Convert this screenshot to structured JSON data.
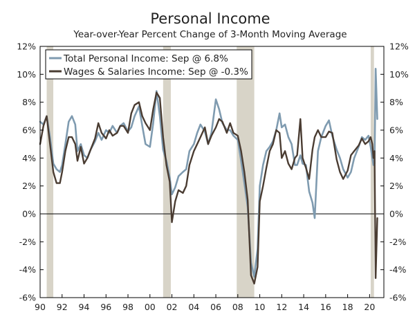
{
  "chart_data": {
    "type": "line",
    "title": "Personal Income",
    "subtitle": "Year-over-Year Percent Change of 3-Month Moving Average",
    "xlabel": "",
    "ylabel": "",
    "xlim": [
      1990,
      2021.3
    ],
    "ylim": [
      -6,
      12
    ],
    "y_ticks": [
      12,
      10,
      8,
      6,
      4,
      2,
      0,
      -2,
      -4,
      -6
    ],
    "y_tick_labels": [
      "12%",
      "10%",
      "8%",
      "6%",
      "4%",
      "2%",
      "0%",
      "-2%",
      "-4%",
      "-6%"
    ],
    "x_ticks": [
      1990,
      1992,
      1994,
      1996,
      1998,
      2000,
      2002,
      2004,
      2006,
      2008,
      2010,
      2012,
      2014,
      2016,
      2018,
      2020
    ],
    "x_tick_labels": [
      "90",
      "92",
      "94",
      "96",
      "98",
      "00",
      "02",
      "04",
      "06",
      "08",
      "10",
      "12",
      "14",
      "16",
      "18",
      "20"
    ],
    "legend_position": "top-left",
    "recessions": [
      [
        1990.6,
        1991.2
      ],
      [
        2001.2,
        2001.9
      ],
      [
        2007.9,
        2009.5
      ],
      [
        2020.1,
        2020.4
      ]
    ],
    "series": [
      {
        "name": "Total Personal Income: Sep @ 6.8%",
        "color": "#7f9bb0",
        "x": [
          1990.0,
          1990.3,
          1990.6,
          1990.9,
          1991.2,
          1991.5,
          1991.8,
          1992.0,
          1992.3,
          1992.6,
          1992.9,
          1993.2,
          1993.4,
          1993.7,
          1994.0,
          1994.3,
          1994.6,
          1995.0,
          1995.3,
          1995.6,
          1996.0,
          1996.3,
          1996.6,
          1997.0,
          1997.3,
          1997.6,
          1998.0,
          1998.3,
          1998.6,
          1999.0,
          1999.3,
          1999.6,
          2000.0,
          2000.3,
          2000.6,
          2000.9,
          2001.2,
          2001.5,
          2001.8,
          2002.0,
          2002.3,
          2002.6,
          2003.0,
          2003.3,
          2003.6,
          2004.0,
          2004.3,
          2004.6,
          2005.0,
          2005.3,
          2005.6,
          2006.0,
          2006.3,
          2006.6,
          2007.0,
          2007.3,
          2007.6,
          2008.0,
          2008.3,
          2008.6,
          2008.9,
          2009.2,
          2009.5,
          2009.8,
          2010.0,
          2010.3,
          2010.6,
          2010.9,
          2011.2,
          2011.5,
          2011.8,
          2012.0,
          2012.3,
          2012.6,
          2012.9,
          2013.2,
          2013.4,
          2013.7,
          2013.9,
          2014.2,
          2014.5,
          2014.8,
          2015.0,
          2015.3,
          2015.6,
          2016.0,
          2016.3,
          2016.6,
          2017.0,
          2017.3,
          2017.6,
          2018.0,
          2018.3,
          2018.6,
          2019.0,
          2019.3,
          2019.6,
          2019.9,
          2020.1,
          2020.25,
          2020.35,
          2020.45,
          2020.55,
          2020.7
        ],
        "values": [
          6.6,
          6.4,
          7.0,
          5.5,
          3.6,
          3.2,
          3.0,
          3.5,
          5.0,
          6.6,
          7.0,
          6.4,
          4.5,
          5.0,
          4.2,
          4.0,
          4.6,
          5.2,
          5.8,
          5.3,
          6.0,
          5.8,
          6.3,
          5.8,
          6.3,
          6.5,
          5.9,
          6.2,
          7.0,
          7.7,
          6.3,
          5.0,
          4.8,
          6.5,
          8.8,
          7.0,
          4.6,
          3.8,
          2.6,
          1.4,
          1.9,
          2.7,
          3.0,
          3.2,
          4.5,
          5.0,
          5.8,
          6.4,
          5.9,
          5.0,
          5.8,
          8.2,
          7.5,
          6.5,
          6.0,
          6.0,
          5.6,
          5.3,
          3.8,
          2.2,
          0.5,
          -3.5,
          -4.5,
          -2.5,
          2.0,
          3.5,
          4.5,
          4.8,
          5.2,
          6.0,
          7.2,
          6.2,
          6.4,
          5.5,
          5.0,
          3.5,
          3.5,
          4.2,
          3.6,
          3.5,
          1.6,
          0.8,
          -0.3,
          4.5,
          5.5,
          6.3,
          6.7,
          5.6,
          4.6,
          4.0,
          3.2,
          2.6,
          3.0,
          4.0,
          4.8,
          5.5,
          5.3,
          5.6,
          4.8,
          4.0,
          3.5,
          3.6,
          10.4,
          6.8
        ]
      },
      {
        "name": "Wages & Salaries Income: Sep @ -0.3%",
        "color": "#4a3c32",
        "x": [
          1990.0,
          1990.3,
          1990.6,
          1990.9,
          1991.2,
          1991.5,
          1991.8,
          1992.0,
          1992.3,
          1992.6,
          1992.9,
          1993.2,
          1993.4,
          1993.7,
          1994.0,
          1994.3,
          1994.6,
          1995.0,
          1995.3,
          1995.6,
          1996.0,
          1996.3,
          1996.6,
          1997.0,
          1997.3,
          1997.6,
          1998.0,
          1998.3,
          1998.6,
          1999.0,
          1999.3,
          1999.6,
          2000.0,
          2000.3,
          2000.6,
          2000.9,
          2001.2,
          2001.5,
          2001.8,
          2002.0,
          2002.3,
          2002.6,
          2003.0,
          2003.3,
          2003.6,
          2004.0,
          2004.3,
          2004.6,
          2005.0,
          2005.3,
          2005.6,
          2006.0,
          2006.3,
          2006.6,
          2007.0,
          2007.3,
          2007.6,
          2008.0,
          2008.3,
          2008.6,
          2008.9,
          2009.2,
          2009.5,
          2009.8,
          2010.0,
          2010.3,
          2010.6,
          2010.9,
          2011.2,
          2011.5,
          2011.8,
          2012.0,
          2012.3,
          2012.6,
          2012.9,
          2013.2,
          2013.4,
          2013.7,
          2013.9,
          2014.2,
          2014.5,
          2014.8,
          2015.0,
          2015.3,
          2015.6,
          2016.0,
          2016.3,
          2016.6,
          2017.0,
          2017.3,
          2017.6,
          2018.0,
          2018.3,
          2018.6,
          2019.0,
          2019.3,
          2019.6,
          2019.9,
          2020.1,
          2020.25,
          2020.35,
          2020.45,
          2020.55,
          2020.7
        ],
        "values": [
          5.0,
          6.3,
          7.0,
          5.0,
          3.0,
          2.2,
          2.2,
          3.0,
          4.5,
          5.5,
          5.5,
          5.0,
          3.8,
          4.8,
          3.6,
          4.0,
          4.6,
          5.4,
          6.5,
          5.8,
          5.4,
          6.0,
          5.6,
          5.8,
          6.3,
          6.3,
          5.8,
          7.2,
          7.8,
          8.0,
          7.0,
          6.5,
          6.0,
          7.5,
          8.7,
          8.3,
          5.5,
          3.5,
          2.3,
          -0.6,
          0.9,
          1.7,
          1.5,
          2.0,
          3.5,
          4.5,
          5.0,
          5.5,
          6.2,
          5.0,
          5.6,
          6.2,
          6.8,
          6.6,
          5.8,
          6.5,
          5.8,
          5.6,
          4.5,
          3.0,
          1.0,
          -4.4,
          -5.0,
          -3.8,
          0.9,
          2.0,
          3.3,
          4.5,
          5.0,
          6.0,
          5.8,
          4.0,
          4.5,
          3.6,
          3.2,
          4.0,
          4.2,
          6.8,
          4.0,
          3.3,
          2.5,
          4.6,
          5.5,
          6.0,
          5.5,
          5.5,
          5.9,
          5.8,
          3.9,
          3.0,
          2.5,
          3.1,
          4.2,
          4.5,
          4.9,
          5.4,
          5.0,
          5.2,
          5.5,
          5.0,
          4.0,
          4.5,
          -4.6,
          -0.3
        ]
      }
    ]
  }
}
